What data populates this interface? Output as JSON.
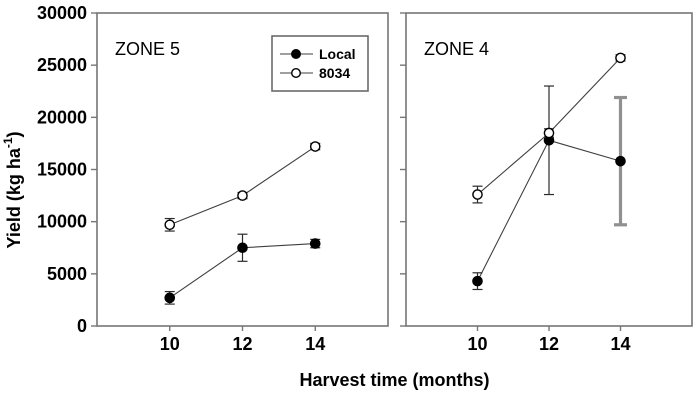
{
  "chart_data": {
    "type": "line",
    "title": "",
    "xlabel": "Harvest time (months)",
    "ylabel": "Yield (kg ha-1)",
    "ylabel_parts": {
      "prefix": "Yield (kg ha",
      "superscript": "-1",
      "suffix": ")"
    },
    "x": [
      10,
      12,
      14
    ],
    "xticks": [
      10,
      12,
      14
    ],
    "xlim": [
      8,
      16
    ],
    "ylim": [
      0,
      30000
    ],
    "yticks": [
      0,
      5000,
      10000,
      15000,
      20000,
      25000,
      30000
    ],
    "grid": false,
    "legend_position": "upper-right-of-left-panel",
    "legend": [
      {
        "label": "Local",
        "marker": "filled"
      },
      {
        "label": "8034",
        "marker": "open"
      }
    ],
    "panels": [
      {
        "label": "ZONE 5",
        "series": [
          {
            "name": "Local",
            "marker": "filled",
            "values": [
              2700,
              7500,
              7900
            ],
            "errors": [
              600,
              1300,
              400
            ],
            "error_thick": [
              false,
              false,
              false
            ]
          },
          {
            "name": "8034",
            "marker": "open",
            "values": [
              9700,
              12500,
              17200
            ],
            "errors": [
              600,
              300,
              300
            ],
            "error_thick": [
              false,
              false,
              false
            ]
          }
        ]
      },
      {
        "label": "ZONE 4",
        "series": [
          {
            "name": "Local",
            "marker": "filled",
            "values": [
              4300,
              17800,
              15800
            ],
            "errors": [
              800,
              5200,
              6100
            ],
            "error_thick": [
              false,
              false,
              true
            ]
          },
          {
            "name": "8034",
            "marker": "open",
            "values": [
              12600,
              18500,
              25700
            ],
            "errors": [
              800,
              400,
              300
            ],
            "error_thick": [
              false,
              false,
              false
            ]
          }
        ]
      }
    ],
    "colors": {
      "background": "#ffffff",
      "line": "#3f3f3f",
      "marker_filled": "#000000",
      "marker_open_fill": "#ffffff",
      "marker_stroke": "#000000",
      "frame": "#767676",
      "error": "#2b2b2b",
      "error_thick": "#909090",
      "text": "#000000"
    }
  }
}
